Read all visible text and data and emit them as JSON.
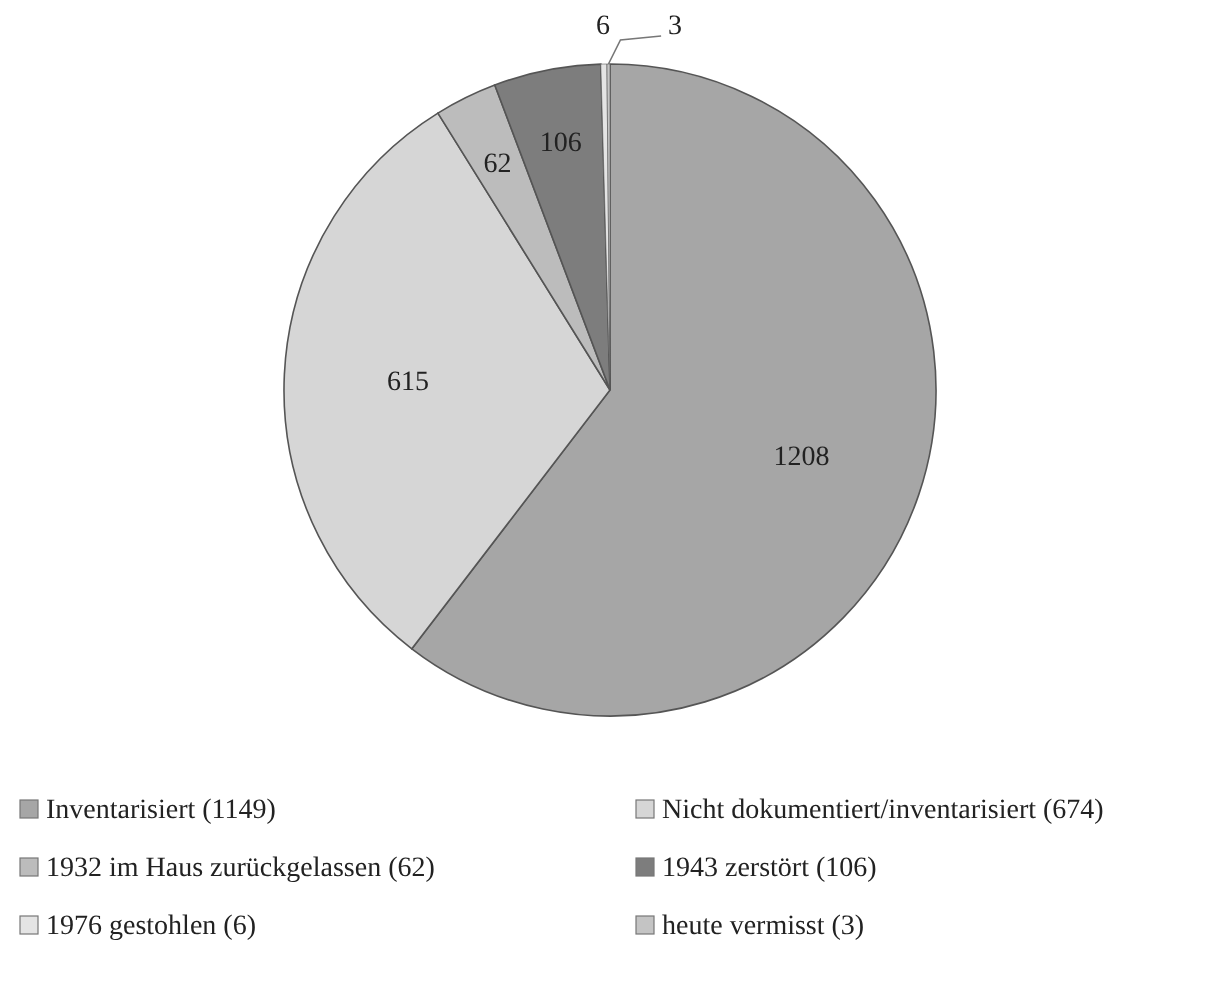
{
  "chart_data": {
    "type": "pie",
    "categories": [
      "Inventarisiert (1149)",
      "Nicht dokumentiert/inventarisiert (674)",
      "1932 im Haus zurückgelassen (62)",
      "1943 zerstört (106)",
      "1976 gestohlen (6)",
      "heute vermisst (3)"
    ],
    "values": [
      1208,
      615,
      62,
      106,
      6,
      3
    ],
    "colors": [
      "#a6a6a6",
      "#d6d6d6",
      "#bcbcbc",
      "#7d7d7d",
      "#e4e4e4",
      "#c4c4c4"
    ],
    "data_labels": true,
    "legend": "bottom"
  }
}
